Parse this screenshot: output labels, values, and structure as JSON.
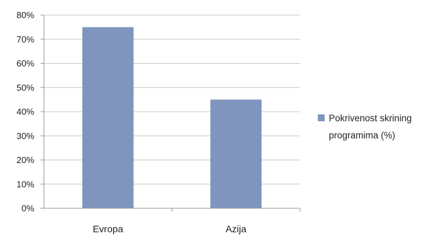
{
  "chart_data": {
    "type": "bar",
    "categories": [
      "Evropa",
      "Azija"
    ],
    "series": [
      {
        "name": "Pokrivenost skrining programima (%)",
        "values": [
          0.75,
          0.45
        ],
        "color": "#7f95bd"
      }
    ],
    "yticks": [
      "0%",
      "10%",
      "20%",
      "30%",
      "40%",
      "50%",
      "60%",
      "70%",
      "80%"
    ],
    "ylim": [
      0,
      0.8
    ],
    "grid": true,
    "legend_position": "right",
    "legend_lines": [
      "Pokrivenost skrining",
      "programima (%)"
    ]
  }
}
